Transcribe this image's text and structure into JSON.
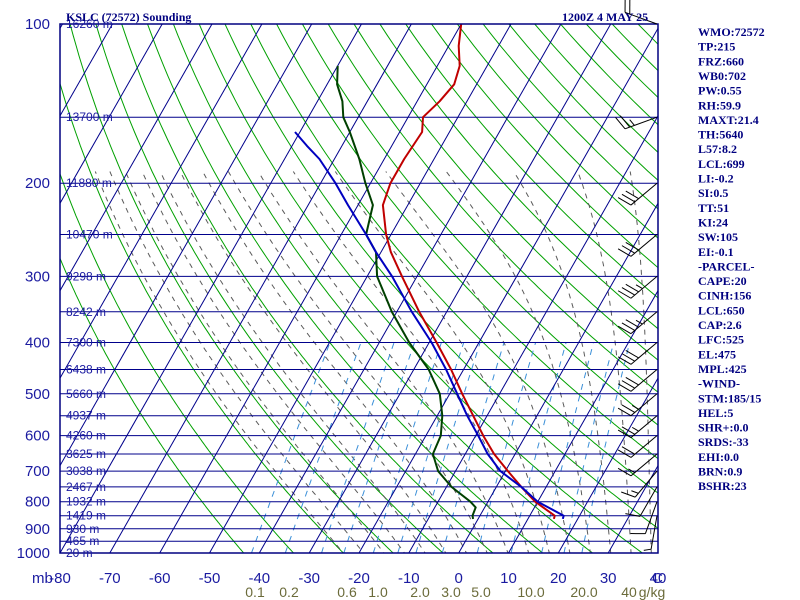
{
  "header": {
    "station": "KSLC (72572) Sounding",
    "time": "1200Z  4 MAY 25"
  },
  "colors": {
    "frame": "#000080",
    "isotherm": "#00008b",
    "dry_adiabat": "#00a000",
    "moist_adiabat": "#5a5a5a",
    "mixing_ratio": "#3a8fd8",
    "temperature": "#c00000",
    "dewpoint": "#004000",
    "parcel": "#0000c0"
  },
  "indices": [
    "WMO:72572",
    "TP:215",
    "FRZ:660",
    "WB0:702",
    "PW:0.55",
    "RH:59.9",
    "MAXT:21.4",
    "TH:5640",
    "L57:8.2",
    "LCL:699",
    "LI:-0.2",
    "SI:0.5",
    "TT:51",
    "KI:24",
    "SW:105",
    "EI:-0.1",
    "-PARCEL-",
    "CAPE:20",
    "CINH:156",
    "LCL:650",
    "CAP:2.6",
    "LFC:525",
    "EL:475",
    "MPL:425",
    "-WIND-",
    "STM:185/15",
    "HEL:5",
    "SHR+:0.0",
    "SRDS:-33",
    "EHI:0.0",
    "BRN:0.9",
    "BSHR:23"
  ],
  "chart_data": {
    "type": "line",
    "title": "KSLC (72572) Sounding",
    "xlabel": "",
    "ylabel": "mb",
    "x_unit": "°C",
    "xlim": [
      -80,
      40
    ],
    "ylim_mb": [
      1000,
      100
    ],
    "log_y": true,
    "grid": true,
    "pressure_ticks": [
      100,
      200,
      300,
      400,
      500,
      600,
      700,
      800,
      900,
      1000
    ],
    "temp_ticks": [
      -80,
      -70,
      -60,
      -50,
      -40,
      -30,
      -20,
      -10,
      0,
      10,
      20,
      30,
      40
    ],
    "x_unit_label": "C",
    "y_unit_label": "mb",
    "height_labels": [
      {
        "p": 100,
        "text": "16260 m"
      },
      {
        "p": 150,
        "text": "13700 m"
      },
      {
        "p": 200,
        "text": "11880 m"
      },
      {
        "p": 250,
        "text": "10470 m"
      },
      {
        "p": 300,
        "text": "9298 m"
      },
      {
        "p": 350,
        "text": "8242 m"
      },
      {
        "p": 400,
        "text": "7300 m"
      },
      {
        "p": 450,
        "text": "6438 m"
      },
      {
        "p": 500,
        "text": "5660 m"
      },
      {
        "p": 550,
        "text": "4937 m"
      },
      {
        "p": 600,
        "text": "4260 m"
      },
      {
        "p": 650,
        "text": "3625 m"
      },
      {
        "p": 700,
        "text": "3038 m"
      },
      {
        "p": 750,
        "text": "2467 m"
      },
      {
        "p": 800,
        "text": "1932 m"
      },
      {
        "p": 850,
        "text": "1419 m"
      },
      {
        "p": 900,
        "text": "930 m"
      },
      {
        "p": 950,
        "text": "465 m"
      },
      {
        "p": 1000,
        "text": "20 m"
      }
    ],
    "mixing_ratio_labels": [
      "0.1",
      "0.2",
      "0.6",
      "1.0",
      "2.0",
      "3.0",
      "5.0",
      "10.0",
      "20.0",
      "40",
      "g/kg"
    ],
    "series": [
      {
        "name": "Temperature",
        "points": [
          [
            862,
            15.2
          ],
          [
            850,
            15.0
          ],
          [
            800,
            9.5
          ],
          [
            750,
            5.0
          ],
          [
            700,
            0.5
          ],
          [
            650,
            -4.2
          ],
          [
            600,
            -8.5
          ],
          [
            550,
            -12.8
          ],
          [
            500,
            -17.5
          ],
          [
            450,
            -22.5
          ],
          [
            400,
            -28.5
          ],
          [
            350,
            -35.5
          ],
          [
            300,
            -43
          ],
          [
            270,
            -48
          ],
          [
            250,
            -51
          ],
          [
            220,
            -55
          ],
          [
            200,
            -56
          ],
          [
            180,
            -56
          ],
          [
            160,
            -55.5
          ],
          [
            150,
            -57
          ],
          [
            140,
            -55.5
          ],
          [
            130,
            -54.5
          ],
          [
            120,
            -55.5
          ],
          [
            110,
            -58
          ],
          [
            100,
            -60
          ]
        ]
      },
      {
        "name": "Dewpoint",
        "points": [
          [
            862,
            -1
          ],
          [
            850,
            -1.5
          ],
          [
            820,
            -1.8
          ],
          [
            800,
            -3.5
          ],
          [
            750,
            -9
          ],
          [
            700,
            -13.5
          ],
          [
            650,
            -16.5
          ],
          [
            600,
            -17
          ],
          [
            550,
            -19
          ],
          [
            500,
            -22
          ],
          [
            450,
            -27
          ],
          [
            400,
            -34
          ],
          [
            350,
            -41
          ],
          [
            300,
            -48
          ],
          [
            270,
            -51
          ],
          [
            250,
            -55
          ],
          [
            220,
            -57
          ],
          [
            200,
            -61
          ],
          [
            180,
            -65
          ],
          [
            160,
            -70
          ],
          [
            150,
            -73
          ],
          [
            140,
            -75
          ],
          [
            130,
            -78
          ],
          [
            120,
            -80
          ]
        ]
      },
      {
        "name": "Parcel",
        "points": [
          [
            862,
            17
          ],
          [
            850,
            16.8
          ],
          [
            800,
            10
          ],
          [
            750,
            5
          ],
          [
            700,
            -1
          ],
          [
            650,
            -5.5
          ],
          [
            600,
            -9.5
          ],
          [
            550,
            -14
          ],
          [
            500,
            -18.5
          ],
          [
            450,
            -23.5
          ],
          [
            400,
            -29.5
          ],
          [
            350,
            -37
          ],
          [
            300,
            -45
          ],
          [
            270,
            -51
          ],
          [
            250,
            -55
          ],
          [
            220,
            -62
          ],
          [
            200,
            -67
          ],
          [
            180,
            -73
          ],
          [
            170,
            -77
          ],
          [
            160,
            -81
          ]
        ]
      }
    ],
    "wind_barbs": [
      {
        "p": 850,
        "dir": 190,
        "spd": 5
      },
      {
        "p": 800,
        "dir": 200,
        "spd": 10
      },
      {
        "p": 750,
        "dir": 210,
        "spd": 10
      },
      {
        "p": 700,
        "dir": 220,
        "spd": 15
      },
      {
        "p": 650,
        "dir": 230,
        "spd": 15
      },
      {
        "p": 600,
        "dir": 230,
        "spd": 20
      },
      {
        "p": 550,
        "dir": 230,
        "spd": 25
      },
      {
        "p": 500,
        "dir": 230,
        "spd": 25
      },
      {
        "p": 450,
        "dir": 230,
        "spd": 30
      },
      {
        "p": 400,
        "dir": 230,
        "spd": 30
      },
      {
        "p": 350,
        "dir": 230,
        "spd": 35
      },
      {
        "p": 300,
        "dir": 230,
        "spd": 35
      },
      {
        "p": 250,
        "dir": 230,
        "spd": 30
      },
      {
        "p": 200,
        "dir": 230,
        "spd": 30
      },
      {
        "p": 150,
        "dir": 250,
        "spd": 25
      },
      {
        "p": 100,
        "dir": 290,
        "spd": 20
      }
    ]
  }
}
